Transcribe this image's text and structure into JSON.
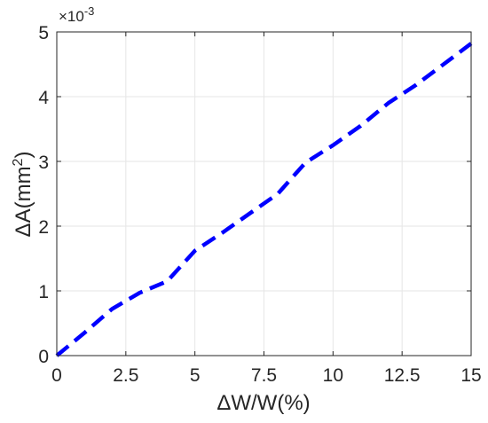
{
  "chart_data": {
    "type": "line",
    "title": "",
    "xlabel": "ΔW/W(%)",
    "ylabel_main": "ΔA(mm",
    "ylabel_sup": "2",
    "ylabel_close": ")",
    "y_exponent_prefix": "×10",
    "y_exponent_power": "-3",
    "xlim": [
      0,
      15
    ],
    "ylim": [
      0,
      5
    ],
    "x_ticks": [
      0,
      2.5,
      5,
      7.5,
      10,
      12.5,
      15
    ],
    "x_tick_labels": [
      "0",
      "2.5",
      "5",
      "7.5",
      "10",
      "12.5",
      "15"
    ],
    "y_ticks": [
      0,
      1,
      2,
      3,
      4,
      5
    ],
    "y_tick_labels": [
      "0",
      "1",
      "2",
      "3",
      "4",
      "5"
    ],
    "grid": true,
    "series": [
      {
        "color": "#0000ff",
        "line_style": "dashed",
        "x": [
          0,
          1,
          2,
          3,
          4,
          5,
          6,
          7,
          8,
          9,
          10,
          11,
          12,
          13,
          14,
          15
        ],
        "y": [
          0,
          0.35,
          0.72,
          0.97,
          1.15,
          1.62,
          1.9,
          2.2,
          2.5,
          2.98,
          3.25,
          3.55,
          3.9,
          4.18,
          4.5,
          4.82
        ]
      }
    ]
  }
}
